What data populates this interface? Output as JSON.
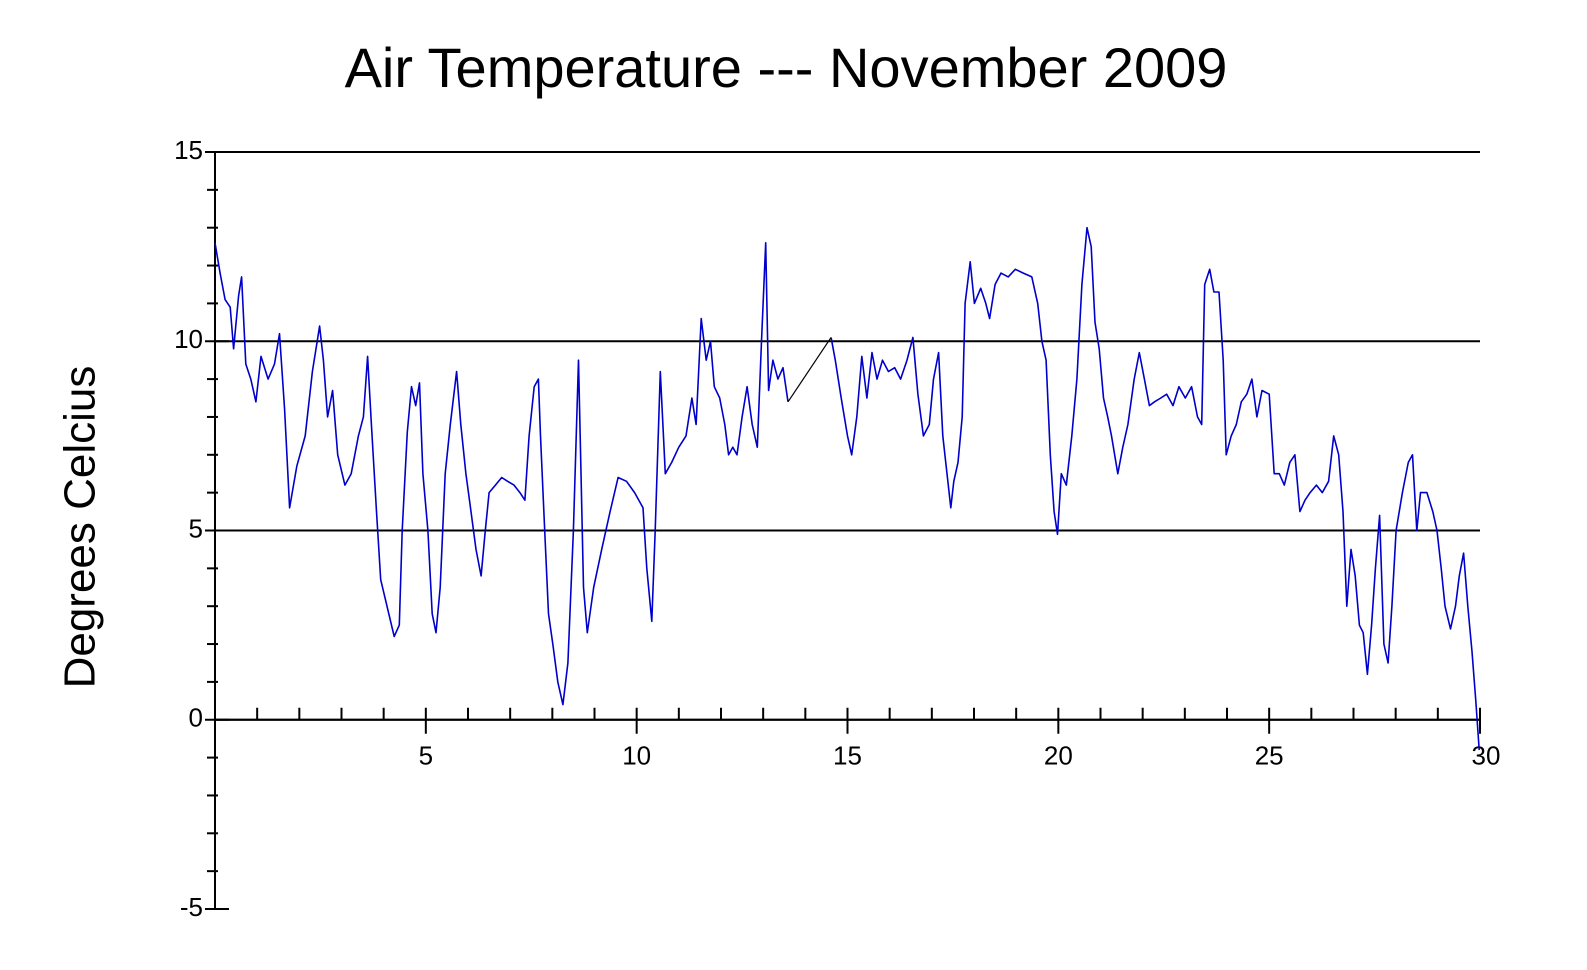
{
  "chart_data": {
    "type": "line",
    "title": "Air Temperature --- November 2009",
    "y_label": "Degrees Celcius",
    "xlim": [
      0,
      30
    ],
    "xticks": [
      5,
      10,
      15,
      20,
      25,
      30
    ],
    "x_minor_ticks": [
      1,
      2,
      3,
      4,
      6,
      7,
      8,
      9,
      11,
      12,
      13,
      14,
      16,
      17,
      18,
      19,
      21,
      22,
      23,
      24,
      26,
      27,
      28,
      29
    ],
    "ylim": [
      -5,
      15
    ],
    "yticks": [
      -5,
      0,
      5,
      10,
      15
    ],
    "y_minor_ticks": [
      -4,
      -3,
      -2,
      -1,
      1,
      2,
      3,
      4,
      6,
      7,
      8,
      9,
      11,
      12,
      13,
      14
    ],
    "grid": true,
    "gap_connector_color": "#000000",
    "series": [
      {
        "color": "#0000cc",
        "x": [
          0,
          0.12,
          0.24,
          0.36,
          0.44,
          0.56,
          0.63,
          0.73,
          0.85,
          0.97,
          1.09,
          1.26,
          1.41,
          1.53,
          1.65,
          1.77,
          1.94,
          2.14,
          2.31,
          2.48,
          2.57,
          2.67,
          2.79,
          2.91,
          3.08,
          3.23,
          3.4,
          3.52,
          3.62,
          3.71,
          3.83,
          3.93,
          4.08,
          4.25,
          4.37,
          4.44,
          4.56,
          4.66,
          4.76,
          4.85,
          4.93,
          5.05,
          5.15,
          5.24,
          5.34,
          5.46,
          5.58,
          5.73,
          5.83,
          5.95,
          6.07,
          6.19,
          6.31,
          6.41,
          6.5,
          6.65,
          6.8,
          6.94,
          7.09,
          7.23,
          7.35,
          7.45,
          7.57,
          7.67,
          7.72,
          7.82,
          7.91,
          8.01,
          8.13,
          8.25,
          8.37,
          8.5,
          8.62,
          8.67,
          8.74,
          8.83,
          8.98,
          9.17,
          9.37,
          9.56,
          9.76,
          9.95,
          10.15,
          10.24,
          10.36,
          10.44,
          10.56,
          10.68,
          10.83,
          11,
          11.17,
          11.31,
          11.41,
          11.53,
          11.65,
          11.75,
          11.84,
          11.97,
          12.09,
          12.18,
          12.28,
          12.38,
          12.5,
          12.62,
          12.74,
          12.86,
          12.96,
          13.06,
          13.13,
          13.23,
          13.35,
          13.47,
          13.59,
          14.1,
          14.61,
          14.71,
          14.85,
          15,
          15.1,
          15.22,
          15.34,
          15.46,
          15.58,
          15.7,
          15.83,
          15.97,
          16.12,
          16.26,
          16.41,
          16.55,
          16.67,
          16.8,
          16.94,
          17.04,
          17.16,
          17.26,
          17.36,
          17.45,
          17.52,
          17.62,
          17.72,
          17.79,
          17.91,
          18.01,
          18.16,
          18.28,
          18.37,
          18.5,
          18.64,
          18.81,
          18.98,
          19.17,
          19.37,
          19.51,
          19.61,
          19.71,
          19.81,
          19.9,
          19.98,
          20.07,
          20.19,
          20.32,
          20.44,
          20.56,
          20.68,
          20.78,
          20.87,
          20.97,
          21.07,
          21.17,
          21.26,
          21.41,
          21.53,
          21.65,
          21.8,
          21.92,
          22.04,
          22.16,
          22.28,
          22.43,
          22.57,
          22.72,
          22.86,
          23.01,
          23.16,
          23.3,
          23.4,
          23.47,
          23.59,
          23.69,
          23.81,
          23.91,
          23.98,
          24.1,
          24.22,
          24.34,
          24.47,
          24.59,
          24.71,
          24.83,
          25,
          25.12,
          25.24,
          25.36,
          25.49,
          25.61,
          25.73,
          25.85,
          25.97,
          26.12,
          26.26,
          26.41,
          26.53,
          26.65,
          26.75,
          26.84,
          26.94,
          27.04,
          27.14,
          27.23,
          27.33,
          27.43,
          27.52,
          27.62,
          27.72,
          27.82,
          27.91,
          28.01,
          28.16,
          28.3,
          28.4,
          28.5,
          28.59,
          28.74,
          28.88,
          28.98,
          29.08,
          29.17,
          29.3,
          29.42,
          29.51,
          29.61,
          29.71,
          29.81,
          29.9,
          29.98
        ],
        "values": [
          12.6,
          11.8,
          11.1,
          10.9,
          9.8,
          11.2,
          11.7,
          9.4,
          9.0,
          8.4,
          9.6,
          9.0,
          9.4,
          10.2,
          8.2,
          5.6,
          6.7,
          7.5,
          9.2,
          10.4,
          9.5,
          8.0,
          8.7,
          7.0,
          6.2,
          6.5,
          7.5,
          8.0,
          9.6,
          7.8,
          5.5,
          3.7,
          3.0,
          2.2,
          2.5,
          5.0,
          7.6,
          8.8,
          8.3,
          8.9,
          6.5,
          5.0,
          2.8,
          2.3,
          3.5,
          6.5,
          7.8,
          9.2,
          7.8,
          6.5,
          5.5,
          4.5,
          3.8,
          5.0,
          6.0,
          6.2,
          6.4,
          6.3,
          6.2,
          6.0,
          5.8,
          7.5,
          8.8,
          9.0,
          7.5,
          5.0,
          2.8,
          2.0,
          1.0,
          0.4,
          1.5,
          5.0,
          9.5,
          7.0,
          3.5,
          2.3,
          3.5,
          4.5,
          5.5,
          6.4,
          6.3,
          6.0,
          5.6,
          4.0,
          2.6,
          5.0,
          9.2,
          6.5,
          6.8,
          7.2,
          7.5,
          8.5,
          7.8,
          10.6,
          9.5,
          10.0,
          8.8,
          8.5,
          7.8,
          7.0,
          7.2,
          7.0,
          8.0,
          8.8,
          7.8,
          7.2,
          10.0,
          12.6,
          8.7,
          9.5,
          9.0,
          9.3,
          8.4,
          null,
          10.1,
          9.5,
          8.5,
          7.5,
          7.0,
          8.0,
          9.6,
          8.5,
          9.7,
          9.0,
          9.5,
          9.2,
          9.3,
          9.0,
          9.5,
          10.1,
          8.6,
          7.5,
          7.8,
          9.0,
          9.7,
          7.5,
          6.5,
          5.6,
          6.3,
          6.8,
          8.0,
          11.0,
          12.1,
          11.0,
          11.4,
          11.0,
          10.6,
          11.5,
          11.8,
          11.7,
          11.9,
          11.8,
          11.7,
          11.0,
          10.0,
          9.5,
          7.0,
          5.5,
          4.9,
          6.5,
          6.2,
          7.5,
          9.0,
          11.5,
          13.0,
          12.5,
          10.5,
          9.8,
          8.5,
          8.0,
          7.5,
          6.5,
          7.2,
          7.8,
          9.0,
          9.7,
          9.0,
          8.3,
          8.4,
          8.5,
          8.6,
          8.3,
          8.8,
          8.5,
          8.8,
          8.0,
          7.8,
          11.5,
          11.9,
          11.3,
          11.3,
          9.5,
          7.0,
          7.5,
          7.8,
          8.4,
          8.6,
          9.0,
          8.0,
          8.7,
          8.6,
          6.5,
          6.5,
          6.2,
          6.8,
          7.0,
          5.5,
          5.8,
          6.0,
          6.2,
          6.0,
          6.3,
          7.5,
          7.0,
          5.5,
          3.0,
          4.5,
          3.8,
          2.5,
          2.3,
          1.2,
          2.5,
          4.0,
          5.4,
          2.0,
          1.5,
          3.0,
          5.0,
          6.0,
          6.8,
          7.0,
          5.0,
          6.0,
          6.0,
          5.5,
          5.0,
          4.0,
          3.0,
          2.4,
          3.0,
          3.8,
          4.4,
          3.0,
          1.8,
          0.5,
          -0.8
        ]
      }
    ]
  }
}
